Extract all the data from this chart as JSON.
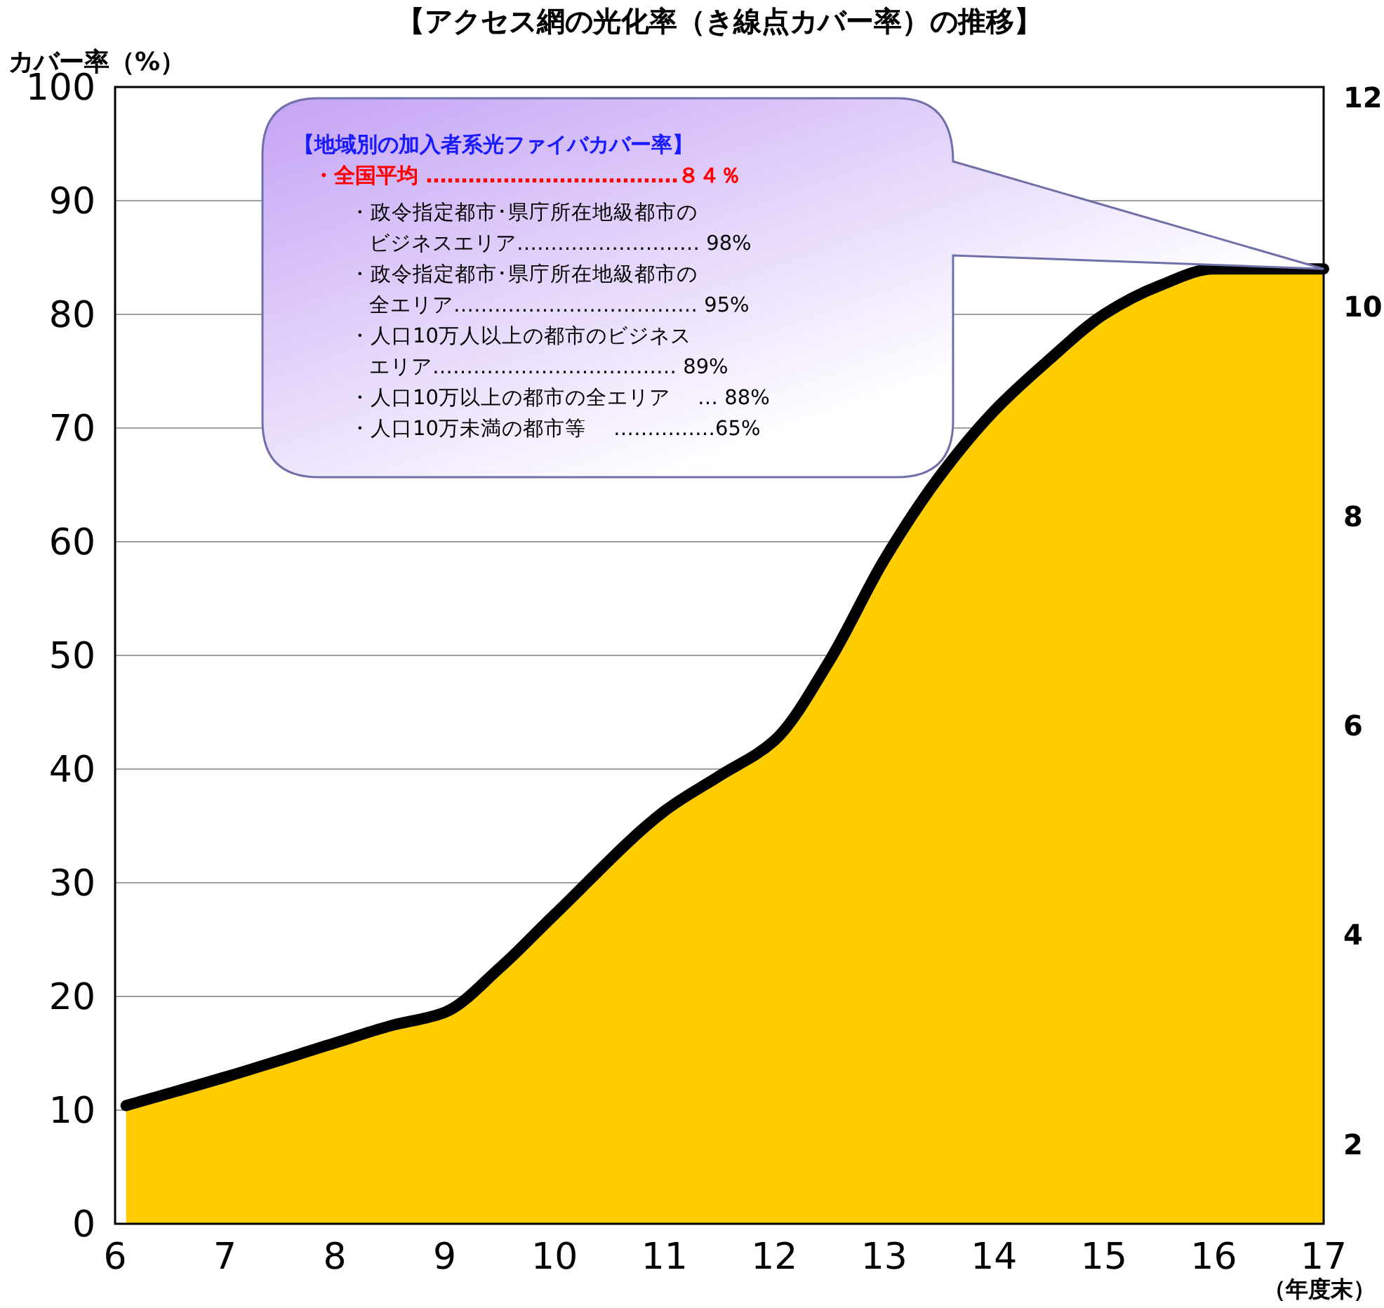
{
  "chart_data": {
    "type": "area",
    "title": "【アクセス網の光化率（き線点カバー率）の推移】",
    "ylabel": "カバー率（%）",
    "xlabel": "（年度末）",
    "x": [
      6.1,
      7,
      8,
      8.5,
      9,
      9.5,
      10,
      11,
      11.5,
      12,
      12.5,
      13,
      13.5,
      14,
      14.5,
      15,
      15.5,
      16,
      16.5,
      17
    ],
    "series": [
      {
        "color": "#ffcc00",
        "values": [
          10.4,
          12.9,
          15.9,
          17.4,
          18.6,
          22.5,
          27.2,
          36.3,
          39.4,
          42.5,
          49.5,
          58.4,
          65.7,
          71.5,
          76,
          80,
          82.5,
          84,
          84,
          84
        ]
      }
    ],
    "xlim": [
      6,
      17
    ],
    "xticks": [
      6,
      7,
      8,
      9,
      10,
      11,
      12,
      13,
      14,
      15,
      16,
      17
    ],
    "ylim": [
      0,
      100
    ],
    "yticks": [
      0,
      10,
      20,
      30,
      40,
      50,
      60,
      70,
      80,
      90,
      100
    ],
    "y2lim": [
      1.24,
      12.1
    ],
    "y2ticks": [
      2,
      4,
      6,
      8,
      10,
      12
    ],
    "grid": "y",
    "annotations": [
      "【地域別の加入者系光ファイバカバー率】",
      "・全国平均 ………………………………８４％",
      "・政令指定都市･県庁所在地級都市の",
      "ビジネスエリア……………………… 98%",
      "・政令指定都市･県庁所在地級都市の",
      "全エリア……………………………… 95%",
      "・人口10万人以上の都市のビジネス",
      "エリア……………………………… 89%",
      "・人口10万以上の都市の全エリア　 … 88%",
      "・人口10万未満の都市等　 ……………65%"
    ]
  }
}
